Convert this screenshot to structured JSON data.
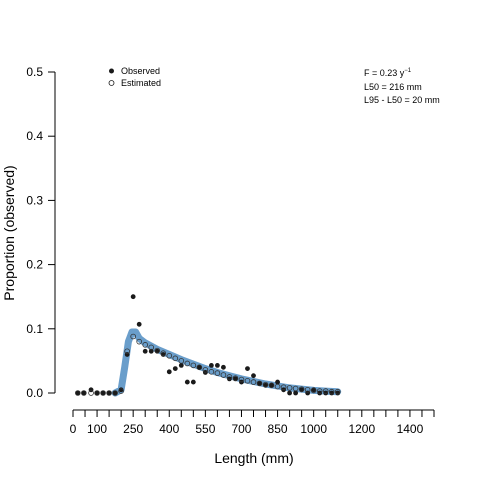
{
  "chart_data": {
    "type": "scatter",
    "xlabel": "Length (mm)",
    "ylabel": "Proportion (observed)",
    "xlim": [
      0,
      1500
    ],
    "ylim": [
      0,
      0.5
    ],
    "x_ticks": [
      0,
      50,
      100,
      150,
      200,
      250,
      300,
      350,
      400,
      450,
      500,
      550,
      600,
      650,
      700,
      750,
      800,
      850,
      900,
      950,
      1000,
      1050,
      1100,
      1150,
      1200,
      1250,
      1300,
      1350,
      1400,
      1450,
      1500
    ],
    "x_tick_labels": [
      {
        "value": 0,
        "label": "0"
      },
      {
        "value": 100,
        "label": "100"
      },
      {
        "value": 250,
        "label": "250"
      },
      {
        "value": 400,
        "label": "400"
      },
      {
        "value": 550,
        "label": "550"
      },
      {
        "value": 700,
        "label": "700"
      },
      {
        "value": 850,
        "label": "850"
      },
      {
        "value": 1000,
        "label": "1000"
      },
      {
        "value": 1200,
        "label": "1200"
      },
      {
        "value": 1400,
        "label": "1400"
      }
    ],
    "y_ticks": [
      {
        "value": 0.0,
        "label": "0.0"
      },
      {
        "value": 0.1,
        "label": "0.1"
      },
      {
        "value": 0.2,
        "label": "0.2"
      },
      {
        "value": 0.3,
        "label": "0.3"
      },
      {
        "value": 0.4,
        "label": "0.4"
      },
      {
        "value": 0.5,
        "label": "0.5"
      }
    ],
    "grid": false,
    "legend_position": "top-left",
    "series": [
      {
        "name": "Observed",
        "marker": "filled-circle",
        "color": "#1a1a1a",
        "x": [
          20,
          45,
          75,
          100,
          125,
          150,
          175,
          200,
          225,
          250,
          275,
          300,
          325,
          350,
          375,
          400,
          425,
          450,
          475,
          500,
          525,
          550,
          575,
          600,
          625,
          650,
          675,
          700,
          725,
          750,
          775,
          800,
          825,
          850,
          875,
          900,
          925,
          950,
          975,
          1000,
          1025,
          1050,
          1075,
          1100
        ],
        "y": [
          0.0,
          0.0,
          0.005,
          0.0,
          0.0,
          0.0,
          0.0,
          0.005,
          0.06,
          0.15,
          0.107,
          0.065,
          0.065,
          0.065,
          0.06,
          0.033,
          0.038,
          0.043,
          0.017,
          0.017,
          0.04,
          0.032,
          0.043,
          0.043,
          0.04,
          0.022,
          0.022,
          0.017,
          0.038,
          0.027,
          0.015,
          0.012,
          0.012,
          0.017,
          0.005,
          0.0,
          0.0,
          0.005,
          0.0,
          0.005,
          0.0,
          0.0,
          0.0,
          0.0
        ]
      },
      {
        "name": "Estimated",
        "marker": "open-circle",
        "color": "#333333",
        "x": [
          20,
          45,
          75,
          100,
          125,
          150,
          175,
          200,
          225,
          250,
          275,
          300,
          325,
          350,
          375,
          400,
          425,
          450,
          475,
          500,
          525,
          550,
          575,
          600,
          625,
          650,
          675,
          700,
          725,
          750,
          775,
          800,
          825,
          850,
          875,
          900,
          925,
          950,
          975,
          1000,
          1025,
          1050,
          1075,
          1100
        ],
        "y": [
          0.0,
          0.0,
          0.0,
          0.0,
          0.0,
          0.0,
          0.0,
          0.003,
          0.065,
          0.088,
          0.08,
          0.075,
          0.071,
          0.066,
          0.062,
          0.058,
          0.054,
          0.05,
          0.046,
          0.043,
          0.04,
          0.036,
          0.033,
          0.031,
          0.028,
          0.025,
          0.023,
          0.021,
          0.019,
          0.017,
          0.015,
          0.013,
          0.012,
          0.01,
          0.009,
          0.008,
          0.007,
          0.006,
          0.005,
          0.004,
          0.003,
          0.003,
          0.002,
          0.002
        ]
      }
    ],
    "fitted_band": {
      "color": "#6a9ecb",
      "x": [
        175,
        200,
        215,
        230,
        245,
        260,
        275,
        300,
        350,
        400,
        450,
        500,
        550,
        600,
        650,
        700,
        750,
        800,
        850,
        900,
        950,
        1000,
        1050,
        1100
      ],
      "y": [
        0.0,
        0.005,
        0.04,
        0.08,
        0.095,
        0.095,
        0.085,
        0.078,
        0.068,
        0.06,
        0.052,
        0.045,
        0.038,
        0.032,
        0.027,
        0.022,
        0.018,
        0.014,
        0.011,
        0.008,
        0.006,
        0.004,
        0.003,
        0.002
      ]
    },
    "annotations": {
      "f_prefix": "F = 0.23 y",
      "f_superscript": "−1",
      "l50": "L50 = 216 mm",
      "l95": "L95 - L50 = 20 mm"
    }
  }
}
